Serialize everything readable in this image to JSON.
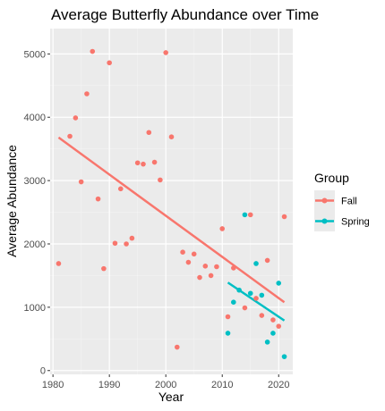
{
  "chart_data": {
    "type": "scatter",
    "title": "Average Butterfly Abundance over Time",
    "xlabel": "Year",
    "ylabel": "Average Abundance",
    "xlim": [
      1979.5,
      2022.5
    ],
    "ylim": [
      -60,
      5400
    ],
    "x_ticks": [
      1980,
      1990,
      2000,
      2010,
      2020
    ],
    "y_ticks": [
      0,
      1000,
      2000,
      3000,
      4000,
      5000
    ],
    "grid": true,
    "legend": {
      "title": "Group",
      "placement": "right",
      "entries": [
        "Fall",
        "Spring"
      ]
    },
    "series": [
      {
        "name": "Fall",
        "color": "#F8766D",
        "points": [
          [
            1981,
            1690
          ],
          [
            1983,
            3700
          ],
          [
            1984,
            3990
          ],
          [
            1985,
            2980
          ],
          [
            1986,
            4370
          ],
          [
            1987,
            5040
          ],
          [
            1988,
            2710
          ],
          [
            1989,
            1610
          ],
          [
            1990,
            4860
          ],
          [
            1991,
            2010
          ],
          [
            1992,
            2870
          ],
          [
            1993,
            2000
          ],
          [
            1994,
            2090
          ],
          [
            1995,
            3280
          ],
          [
            1996,
            3260
          ],
          [
            1997,
            3760
          ],
          [
            1998,
            3290
          ],
          [
            1999,
            3010
          ],
          [
            2000,
            5020
          ],
          [
            2001,
            3690
          ],
          [
            2002,
            370
          ],
          [
            2003,
            1870
          ],
          [
            2004,
            1710
          ],
          [
            2005,
            1840
          ],
          [
            2006,
            1470
          ],
          [
            2007,
            1650
          ],
          [
            2008,
            1500
          ],
          [
            2009,
            1640
          ],
          [
            2010,
            2240
          ],
          [
            2011,
            850
          ],
          [
            2012,
            1620
          ],
          [
            2014,
            990
          ],
          [
            2015,
            2460
          ],
          [
            2016,
            1140
          ],
          [
            2017,
            870
          ],
          [
            2018,
            1740
          ],
          [
            2019,
            800
          ],
          [
            2020,
            700
          ],
          [
            2021,
            2430
          ]
        ],
        "trend": {
          "x": [
            1981,
            2021
          ],
          "y": [
            3680,
            1080
          ]
        }
      },
      {
        "name": "Spring",
        "color": "#00BFC4",
        "points": [
          [
            2011,
            590
          ],
          [
            2012,
            1080
          ],
          [
            2013,
            1270
          ],
          [
            2014,
            2460
          ],
          [
            2015,
            1220
          ],
          [
            2016,
            1690
          ],
          [
            2017,
            1190
          ],
          [
            2018,
            450
          ],
          [
            2019,
            590
          ],
          [
            2020,
            1380
          ],
          [
            2021,
            220
          ]
        ],
        "trend": {
          "x": [
            2011,
            2021
          ],
          "y": [
            1390,
            790
          ]
        }
      }
    ]
  }
}
